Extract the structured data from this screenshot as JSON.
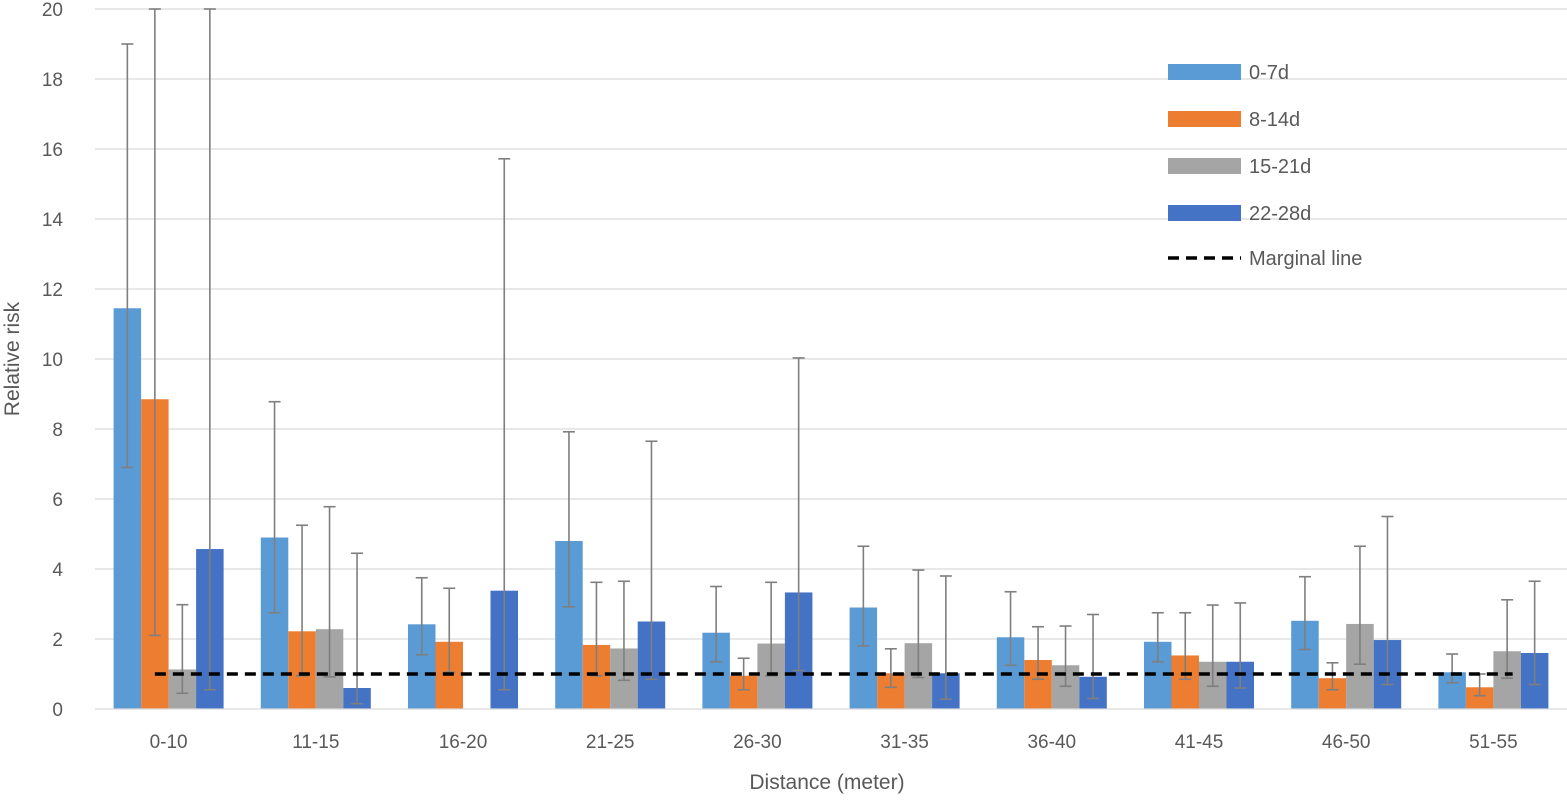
{
  "chart_data": {
    "type": "bar",
    "xlabel": "Distance (meter)",
    "ylabel": "Relative risk",
    "ylim": [
      0,
      20
    ],
    "yticks": [
      0,
      2,
      4,
      6,
      8,
      10,
      12,
      14,
      16,
      18,
      20
    ],
    "grid": true,
    "legend_position": "top-right",
    "categories": [
      "0-10",
      "11-15",
      "16-20",
      "21-25",
      "26-30",
      "31-35",
      "36-40",
      "41-45",
      "46-50",
      "51-55"
    ],
    "series": [
      {
        "name": "0-7d",
        "color": "#5B9BD5",
        "values": [
          11.45,
          4.9,
          2.42,
          4.8,
          2.18,
          2.9,
          2.05,
          1.92,
          2.52,
          1.05
        ],
        "lower": [
          6.9,
          2.75,
          1.55,
          2.92,
          1.35,
          1.8,
          1.25,
          1.35,
          1.7,
          0.75
        ],
        "upper": [
          19.0,
          8.78,
          3.75,
          7.92,
          3.5,
          4.65,
          3.35,
          2.75,
          3.78,
          1.57
        ]
      },
      {
        "name": "8-14d",
        "color": "#ED7D31",
        "values": [
          8.85,
          2.22,
          1.92,
          1.83,
          0.95,
          1.02,
          1.4,
          1.53,
          0.88,
          0.62
        ],
        "lower": [
          2.1,
          0.95,
          1.05,
          0.95,
          0.55,
          0.62,
          0.85,
          0.85,
          0.55,
          0.38
        ],
        "upper": [
          20.0,
          5.25,
          3.45,
          3.62,
          1.45,
          1.72,
          2.35,
          2.75,
          1.32,
          1.0
        ]
      },
      {
        "name": "15-21d",
        "color": "#A5A5A5",
        "values": [
          1.13,
          2.28,
          0,
          1.73,
          1.87,
          1.88,
          1.25,
          1.35,
          2.43,
          1.65
        ],
        "lower": [
          0.45,
          0.92,
          0,
          0.82,
          0.95,
          0.9,
          0.65,
          0.65,
          1.28,
          0.88
        ],
        "upper": [
          2.98,
          5.78,
          0,
          3.65,
          3.62,
          3.97,
          2.37,
          2.97,
          4.65,
          3.12
        ]
      },
      {
        "name": "22-28d",
        "color": "#4472C4",
        "values": [
          4.57,
          0.6,
          3.38,
          2.5,
          3.33,
          1.02,
          0.92,
          1.35,
          1.97,
          1.6
        ],
        "lower": [
          0.55,
          0.15,
          0.55,
          0.85,
          1.1,
          0.28,
          0.3,
          0.6,
          0.7,
          0.7
        ],
        "upper": [
          20.0,
          4.45,
          15.72,
          7.65,
          10.03,
          3.8,
          2.7,
          3.03,
          5.5,
          3.65
        ]
      }
    ],
    "reference_line": {
      "name": "Marginal line",
      "value": 1,
      "color": "#000000",
      "style": "dashed"
    }
  }
}
